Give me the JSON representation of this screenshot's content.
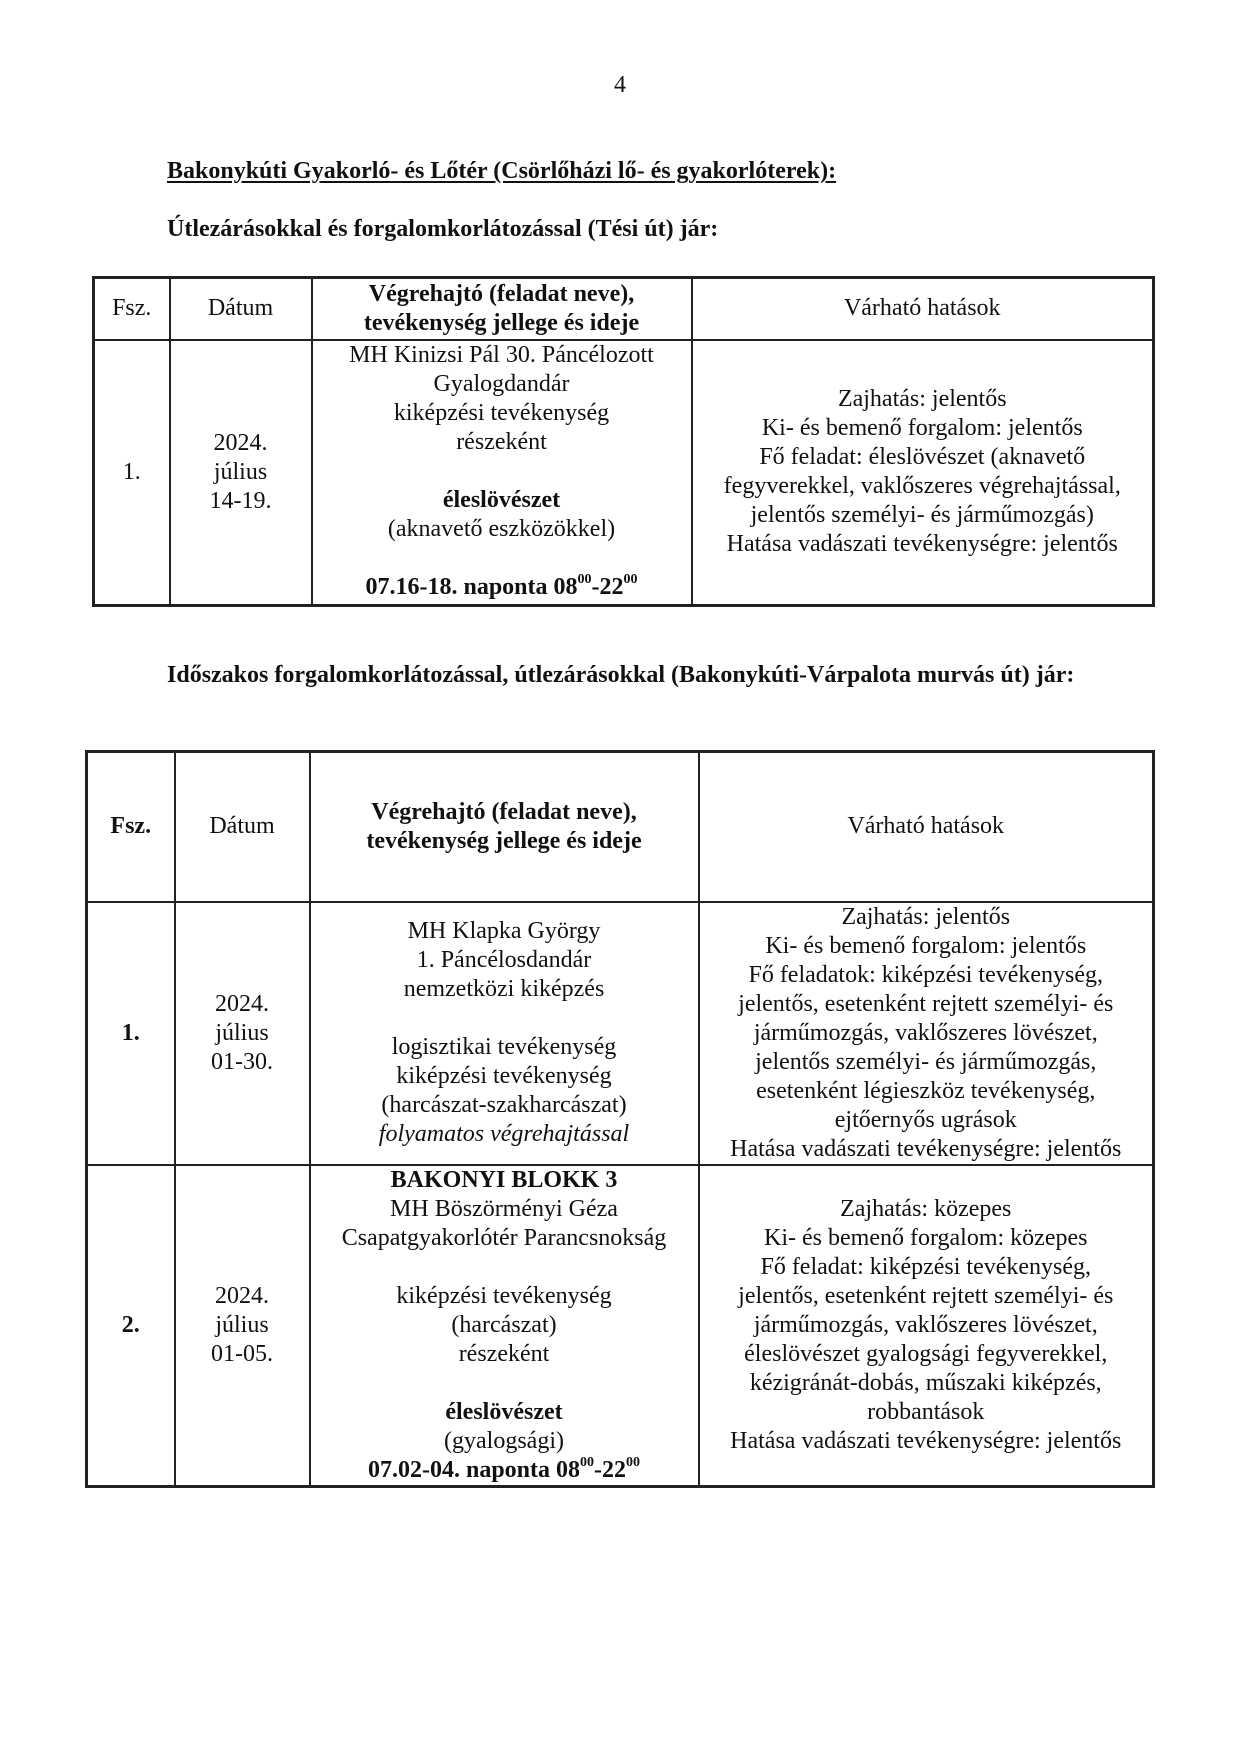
{
  "page_number": "4",
  "heading_main": "Bakonykúti Gyakorló- és Lőtér (Csörlőházi lő- és gyakorlóterek):",
  "section1": {
    "title": "Útlezárásokkal és forgalomkorlátozással (Tési út) jár:",
    "header": [
      [
        {
          "t": "Fsz."
        }
      ],
      [
        {
          "t": "Dátum"
        }
      ],
      [
        {
          "t": "Végrehajtó (feladat neve),",
          "b": true
        },
        {
          "t": "tevékenység jellege és ideje",
          "b": true
        }
      ],
      [
        {
          "t": "Várható hatások"
        }
      ]
    ],
    "rows": [
      [
        [
          {
            "t": "1."
          }
        ],
        [
          {
            "t": "2024."
          },
          {
            "t": "július"
          },
          {
            "t": "14-19."
          }
        ],
        [
          {
            "t": "MH Kinizsi Pál 30. Páncélozott"
          },
          {
            "t": "Gyalogdandár"
          },
          {
            "t": "kiképzési tevékenység"
          },
          {
            "t": "részeként"
          },
          {
            "gap": true
          },
          {
            "t": "éleslövészet",
            "b": true
          },
          {
            "t": "(aknavető eszközökkel)"
          },
          {
            "gap": true
          },
          {
            "b": true,
            "parts": [
              {
                "t": "07.16-18. naponta 08"
              },
              {
                "t": "00",
                "sup": true
              },
              {
                "t": "-22"
              },
              {
                "t": "00",
                "sup": true
              }
            ]
          }
        ],
        [
          {
            "t": "Zajhatás: jelentős"
          },
          {
            "t": "Ki- és bemenő forgalom: jelentős"
          },
          {
            "t": "Fő feladat: éleslövészet (aknavető"
          },
          {
            "t": "fegyverekkel, vaklőszeres végrehajtással,"
          },
          {
            "t": "jelentős személyi- és járműmozgás)"
          },
          {
            "t": "Hatása vadászati tevékenységre: jelentős"
          }
        ]
      ]
    ]
  },
  "section2": {
    "title": "Időszakos forgalomkorlátozással, útlezárásokkal (Bakonykúti-Várpalota murvás út) jár:",
    "header": [
      [
        {
          "t": "Fsz.",
          "b": true
        }
      ],
      [
        {
          "t": "Dátum"
        }
      ],
      [
        {
          "t": "Végrehajtó (feladat neve),",
          "b": true
        },
        {
          "t": "tevékenység jellege és ideje",
          "b": true
        }
      ],
      [
        {
          "t": "Várható hatások"
        }
      ]
    ],
    "rows": [
      [
        [
          {
            "t": "1.",
            "b": true
          }
        ],
        [
          {
            "t": "2024."
          },
          {
            "t": "július"
          },
          {
            "t": "01-30."
          }
        ],
        [
          {
            "t": "MH Klapka György"
          },
          {
            "t": "1. Páncélosdandár"
          },
          {
            "t": "nemzetközi kiképzés"
          },
          {
            "gap": true
          },
          {
            "t": "logisztikai tevékenység"
          },
          {
            "t": "kiképzési tevékenység"
          },
          {
            "t": "(harcászat-szakharcászat)"
          },
          {
            "t": "folyamatos végrehajtással",
            "i": true
          }
        ],
        [
          {
            "t": "Zajhatás: jelentős"
          },
          {
            "t": "Ki- és bemenő forgalom: jelentős"
          },
          {
            "t": "Fő feladatok: kiképzési tevékenység,"
          },
          {
            "t": "jelentős, esetenként rejtett személyi- és"
          },
          {
            "t": "járműmozgás, vaklőszeres lövészet,"
          },
          {
            "t": "jelentős személyi- és járműmozgás,"
          },
          {
            "t": "esetenként légieszköz tevékenység,"
          },
          {
            "t": "ejtőernyős ugrások"
          },
          {
            "t": "Hatása vadászati tevékenységre: jelentős"
          }
        ]
      ],
      [
        [
          {
            "t": "2.",
            "b": true
          }
        ],
        [
          {
            "t": "2024."
          },
          {
            "t": "július"
          },
          {
            "t": "01-05."
          }
        ],
        [
          {
            "t": "BAKONYI BLOKK 3",
            "b": true
          },
          {
            "t": "MH Böszörményi Géza"
          },
          {
            "t": "Csapatgyakorlótér Parancsnokság"
          },
          {
            "gap": true
          },
          {
            "t": "kiképzési tevékenység"
          },
          {
            "t": "(harcászat)"
          },
          {
            "t": "részeként"
          },
          {
            "gap": true
          },
          {
            "t": "éleslövészet",
            "b": true
          },
          {
            "t": "(gyalogsági)"
          },
          {
            "b": true,
            "parts": [
              {
                "t": "07.02-04. naponta 08"
              },
              {
                "t": "00",
                "sup": true
              },
              {
                "t": "-22"
              },
              {
                "t": "00",
                "sup": true
              }
            ]
          }
        ],
        [
          {
            "t": "Zajhatás: közepes"
          },
          {
            "t": "Ki- és bemenő forgalom: közepes"
          },
          {
            "t": "Fő feladat: kiképzési tevékenység,"
          },
          {
            "t": "jelentős, esetenként rejtett személyi- és"
          },
          {
            "t": "járműmozgás, vaklőszeres lövészet,"
          },
          {
            "t": "éleslövészet gyalogsági fegyverekkel,"
          },
          {
            "t": "kézigránát-dobás, műszaki kiképzés,"
          },
          {
            "t": "robbantások"
          },
          {
            "t": "Hatása vadászati tevékenységre: jelentős"
          }
        ]
      ]
    ]
  }
}
